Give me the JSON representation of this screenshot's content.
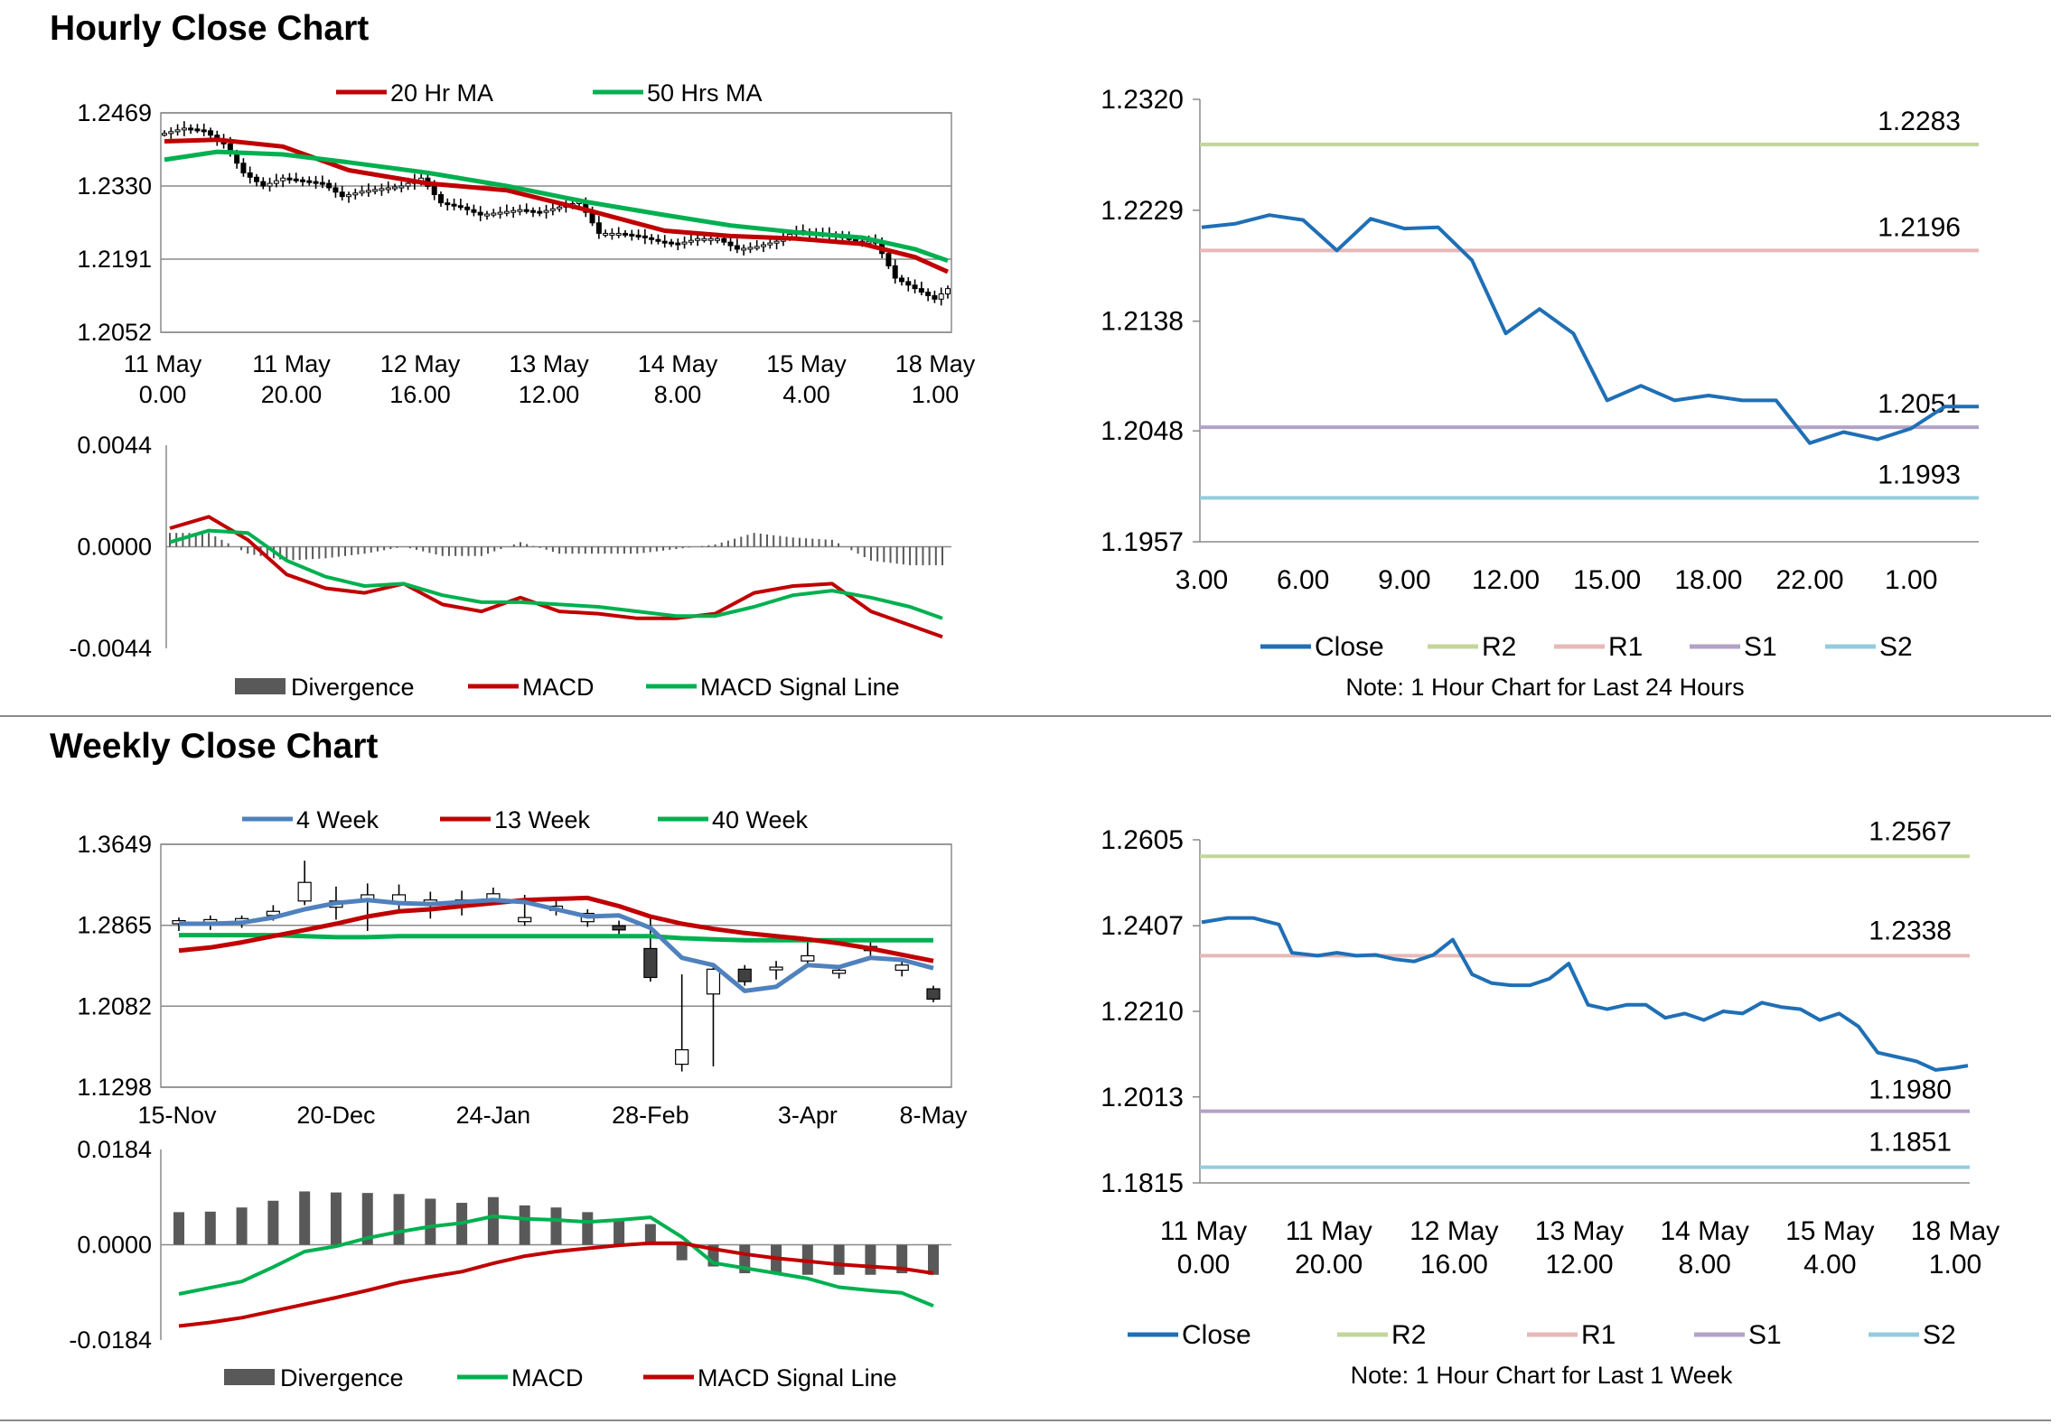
{
  "sections": {
    "hourly_title": "Hourly Close Chart",
    "weekly_title": "Weekly Close Chart"
  },
  "chart_data": [
    {
      "id": "hourly_price",
      "type": "candlestick",
      "x_ticks": [
        {
          "l1": "11 May",
          "l2": "0.00"
        },
        {
          "l1": "11 May",
          "l2": "20.00"
        },
        {
          "l1": "12 May",
          "l2": "16.00"
        },
        {
          "l1": "13 May",
          "l2": "12.00"
        },
        {
          "l1": "14 May",
          "l2": "8.00"
        },
        {
          "l1": "15 May",
          "l2": "4.00"
        },
        {
          "l1": "18 May",
          "l2": "1.00"
        }
      ],
      "y_ticks": [
        "1.2469",
        "1.2330",
        "1.2191",
        "1.2052"
      ],
      "ylim": [
        1.2052,
        1.2469
      ],
      "x_count": 120,
      "legend": [
        "20 Hr MA",
        "50 Hrs MA"
      ],
      "colors": {
        "ma20": "#c00000",
        "ma50": "#00b050",
        "candle": "#000000"
      },
      "series": [
        {
          "name": "20 Hr MA",
          "x": [
            0,
            8,
            18,
            28,
            40,
            52,
            64,
            76,
            86,
            96,
            106,
            114,
            119
          ],
          "y": [
            1.2415,
            1.2418,
            1.2405,
            1.236,
            1.2335,
            1.2322,
            1.2285,
            1.2245,
            1.2235,
            1.223,
            1.222,
            1.2195,
            1.2167
          ]
        },
        {
          "name": "50 Hrs MA",
          "x": [
            0,
            8,
            18,
            28,
            40,
            52,
            64,
            76,
            86,
            96,
            106,
            114,
            119
          ],
          "y": [
            1.238,
            1.2395,
            1.239,
            1.2375,
            1.2355,
            1.233,
            1.23,
            1.2275,
            1.2255,
            1.2242,
            1.2232,
            1.221,
            1.2188
          ]
        },
        {
          "name": "Close",
          "x": [
            0,
            3,
            6,
            9,
            12,
            15,
            18,
            21,
            24,
            27,
            30,
            33,
            36,
            39,
            42,
            45,
            48,
            51,
            54,
            57,
            60,
            63,
            66,
            69,
            72,
            75,
            78,
            81,
            84,
            87,
            90,
            93,
            96,
            99,
            102,
            105,
            108,
            111,
            114,
            117,
            119
          ],
          "y": [
            1.243,
            1.244,
            1.2435,
            1.241,
            1.2355,
            1.233,
            1.2345,
            1.234,
            1.2335,
            1.231,
            1.232,
            1.2325,
            1.233,
            1.2345,
            1.2298,
            1.229,
            1.2275,
            1.228,
            1.2285,
            1.228,
            1.229,
            1.23,
            1.224,
            1.224,
            1.2235,
            1.2225,
            1.222,
            1.223,
            1.223,
            1.221,
            1.2215,
            1.2225,
            1.2245,
            1.224,
            1.2235,
            1.2225,
            1.2225,
            1.2155,
            1.2135,
            1.2115,
            1.2135
          ]
        }
      ]
    },
    {
      "id": "hourly_macd",
      "type": "line_bar",
      "y_ticks": [
        "0.0044",
        "0.0000",
        "-0.0044"
      ],
      "ylim": [
        -0.0044,
        0.0044
      ],
      "x_count": 120,
      "legend": [
        "Divergence",
        "MACD",
        "MACD Signal Line"
      ],
      "colors": {
        "divergence": "#595959",
        "macd": "#c00000",
        "signal": "#00b050"
      },
      "series": [
        {
          "name": "MACD",
          "x": [
            0,
            6,
            12,
            18,
            24,
            30,
            36,
            42,
            48,
            54,
            60,
            66,
            72,
            78,
            84,
            90,
            96,
            102,
            108,
            114,
            119
          ],
          "y": [
            0.0008,
            0.0013,
            0.0003,
            -0.0012,
            -0.0018,
            -0.002,
            -0.0016,
            -0.0025,
            -0.0028,
            -0.0022,
            -0.0028,
            -0.0029,
            -0.0031,
            -0.0031,
            -0.0029,
            -0.002,
            -0.0017,
            -0.0016,
            -0.0028,
            -0.0034,
            -0.0039
          ]
        },
        {
          "name": "MACD Signal Line",
          "x": [
            0,
            6,
            12,
            18,
            24,
            30,
            36,
            42,
            48,
            54,
            60,
            66,
            72,
            78,
            84,
            90,
            96,
            102,
            108,
            114,
            119
          ],
          "y": [
            0.0002,
            0.0007,
            0.0006,
            -0.0006,
            -0.0013,
            -0.0017,
            -0.0016,
            -0.0021,
            -0.0024,
            -0.0024,
            -0.0025,
            -0.0026,
            -0.0028,
            -0.003,
            -0.003,
            -0.0026,
            -0.0021,
            -0.0019,
            -0.0022,
            -0.0026,
            -0.0031
          ]
        }
      ]
    },
    {
      "id": "hourly_sr",
      "type": "line",
      "x_ticks": [
        "3.00",
        "6.00",
        "9.00",
        "12.00",
        "15.00",
        "18.00",
        "22.00",
        "1.00"
      ],
      "y_ticks": [
        "1.2320",
        "1.2229",
        "1.2138",
        "1.2048",
        "1.1957"
      ],
      "ylim": [
        1.1957,
        1.232
      ],
      "levels": [
        {
          "name": "R2",
          "value": 1.2283,
          "label": "1.2283",
          "color": "#c3d69b"
        },
        {
          "name": "R1",
          "value": 1.2196,
          "label": "1.2196",
          "color": "#e6b9b8"
        },
        {
          "name": "S1",
          "value": 1.2051,
          "label": "1.2051",
          "color": "#b3a2c7"
        },
        {
          "name": "S2",
          "value": 1.1993,
          "label": "1.1993",
          "color": "#93cddd"
        }
      ],
      "close_color": "#1f6fb5",
      "close": [
        1.2215,
        1.2218,
        1.2225,
        1.2221,
        1.2196,
        1.2222,
        1.2214,
        1.2215,
        1.2188,
        1.2128,
        1.2148,
        1.2128,
        1.2073,
        1.2085,
        1.2073,
        1.2077,
        1.2073,
        1.2073,
        1.2038,
        1.2047,
        1.2041,
        1.205,
        1.2068,
        1.2068
      ],
      "legend": [
        "Close",
        "R2",
        "R1",
        "S1",
        "S2"
      ],
      "note": "Note: 1 Hour Chart for Last 24 Hours"
    },
    {
      "id": "weekly_price",
      "type": "candlestick",
      "x_ticks": [
        "15-Nov",
        "20-Dec",
        "24-Jan",
        "28-Feb",
        "3-Apr",
        "8-May"
      ],
      "y_ticks": [
        "1.3649",
        "1.2865",
        "1.2082",
        "1.1298"
      ],
      "ylim": [
        1.1298,
        1.3649
      ],
      "legend": [
        "4 Week",
        "13 Week",
        "40 Week"
      ],
      "colors": {
        "w4": "#4f81bd",
        "w13": "#c00000",
        "w40": "#00b050"
      },
      "candles": [
        {
          "o": 1.288,
          "c": 1.291,
          "h": 1.294,
          "l": 1.281
        },
        {
          "o": 1.287,
          "c": 1.292,
          "h": 1.296,
          "l": 1.282
        },
        {
          "o": 1.289,
          "c": 1.293,
          "h": 1.296,
          "l": 1.284
        },
        {
          "o": 1.296,
          "c": 1.3,
          "h": 1.306,
          "l": 1.291
        },
        {
          "o": 1.31,
          "c": 1.328,
          "h": 1.349,
          "l": 1.306
        },
        {
          "o": 1.304,
          "c": 1.31,
          "h": 1.324,
          "l": 1.292
        },
        {
          "o": 1.31,
          "c": 1.316,
          "h": 1.327,
          "l": 1.281
        },
        {
          "o": 1.309,
          "c": 1.316,
          "h": 1.326,
          "l": 1.302
        },
        {
          "o": 1.307,
          "c": 1.311,
          "h": 1.319,
          "l": 1.293
        },
        {
          "o": 1.307,
          "c": 1.311,
          "h": 1.32,
          "l": 1.296
        },
        {
          "o": 1.311,
          "c": 1.317,
          "h": 1.323,
          "l": 1.306
        },
        {
          "o": 1.29,
          "c": 1.294,
          "h": 1.316,
          "l": 1.286
        },
        {
          "o": 1.301,
          "c": 1.305,
          "h": 1.31,
          "l": 1.296
        },
        {
          "o": 1.29,
          "c": 1.298,
          "h": 1.302,
          "l": 1.285
        },
        {
          "o": 1.286,
          "c": 1.282,
          "h": 1.291,
          "l": 1.276
        },
        {
          "o": 1.264,
          "c": 1.236,
          "h": 1.295,
          "l": 1.232
        },
        {
          "o": 1.152,
          "c": 1.166,
          "h": 1.239,
          "l": 1.145
        },
        {
          "o": 1.22,
          "c": 1.244,
          "h": 1.249,
          "l": 1.15
        },
        {
          "o": 1.244,
          "c": 1.232,
          "h": 1.248,
          "l": 1.228
        },
        {
          "o": 1.246,
          "c": 1.246,
          "h": 1.252,
          "l": 1.234
        },
        {
          "o": 1.252,
          "c": 1.257,
          "h": 1.27,
          "l": 1.248
        },
        {
          "o": 1.24,
          "c": 1.243,
          "h": 1.248,
          "l": 1.235
        },
        {
          "o": 1.262,
          "c": 1.266,
          "h": 1.271,
          "l": 1.256
        },
        {
          "o": 1.243,
          "c": 1.248,
          "h": 1.254,
          "l": 1.237
        },
        {
          "o": 1.225,
          "c": 1.215,
          "h": 1.228,
          "l": 1.212
        }
      ],
      "series": [
        {
          "name": "4 Week",
          "y": [
            1.288,
            1.288,
            1.289,
            1.294,
            1.302,
            1.308,
            1.311,
            1.308,
            1.307,
            1.309,
            1.311,
            1.309,
            1.302,
            1.295,
            1.296,
            1.284,
            1.255,
            1.248,
            1.223,
            1.227,
            1.248,
            1.246,
            1.255,
            1.253,
            1.245
          ]
        },
        {
          "name": "13 Week",
          "y": [
            1.262,
            1.265,
            1.27,
            1.276,
            1.282,
            1.288,
            1.295,
            1.3,
            1.302,
            1.305,
            1.308,
            1.311,
            1.312,
            1.313,
            1.305,
            1.295,
            1.288,
            1.283,
            1.279,
            1.276,
            1.273,
            1.269,
            1.264,
            1.258,
            1.252
          ]
        },
        {
          "name": "40 Week",
          "y": [
            1.277,
            1.277,
            1.277,
            1.277,
            1.276,
            1.275,
            1.275,
            1.276,
            1.276,
            1.276,
            1.276,
            1.276,
            1.276,
            1.276,
            1.276,
            1.276,
            1.274,
            1.273,
            1.272,
            1.272,
            1.272,
            1.272,
            1.272,
            1.272,
            1.272
          ]
        }
      ]
    },
    {
      "id": "weekly_macd",
      "type": "line_bar",
      "y_ticks": [
        "0.0184",
        "0.0000",
        "-0.0184"
      ],
      "ylim": [
        -0.0184,
        0.0184
      ],
      "legend": [
        "Divergence",
        "MACD",
        "MACD Signal Line"
      ],
      "colors": {
        "divergence": "#595959",
        "macd": "#00b050",
        "signal": "#c00000"
      },
      "divergence": [
        0.0063,
        0.0064,
        0.0072,
        0.0085,
        0.0103,
        0.0101,
        0.01,
        0.0098,
        0.0089,
        0.0081,
        0.0092,
        0.0076,
        0.0072,
        0.0063,
        0.0047,
        0.004,
        -0.003,
        -0.0042,
        -0.0055,
        -0.0055,
        -0.0058,
        -0.0058,
        -0.0058,
        -0.0055,
        -0.0058
      ],
      "series": [
        {
          "name": "MACD",
          "y": [
            -0.0095,
            -0.0083,
            -0.0071,
            -0.0043,
            -0.0013,
            -0.0003,
            0.0013,
            0.0025,
            0.0035,
            0.0042,
            0.0055,
            0.005,
            0.0048,
            0.0044,
            0.0048,
            0.0053,
            0.0015,
            -0.0035,
            -0.0045,
            -0.0055,
            -0.0065,
            -0.0082,
            -0.0088,
            -0.0093,
            -0.0118
          ]
        },
        {
          "name": "MACD Signal Line",
          "y": [
            -0.0157,
            -0.015,
            -0.0141,
            -0.0128,
            -0.0115,
            -0.0102,
            -0.0088,
            -0.0073,
            -0.0062,
            -0.0052,
            -0.0036,
            -0.0022,
            -0.0013,
            -0.0007,
            -0.0001,
            0.0003,
            0.0003,
            -0.0008,
            -0.0018,
            -0.0026,
            -0.0032,
            -0.0038,
            -0.0042,
            -0.0046,
            -0.0055
          ]
        }
      ]
    },
    {
      "id": "weekly_sr",
      "type": "line",
      "x_ticks": [
        {
          "l1": "11 May",
          "l2": "0.00"
        },
        {
          "l1": "11 May",
          "l2": "20.00"
        },
        {
          "l1": "12 May",
          "l2": "16.00"
        },
        {
          "l1": "13 May",
          "l2": "12.00"
        },
        {
          "l1": "14 May",
          "l2": "8.00"
        },
        {
          "l1": "15 May",
          "l2": "4.00"
        },
        {
          "l1": "18 May",
          "l2": "1.00"
        }
      ],
      "y_ticks": [
        "1.2605",
        "1.2407",
        "1.2210",
        "1.2013",
        "1.1815"
      ],
      "ylim": [
        1.1815,
        1.2605
      ],
      "levels": [
        {
          "name": "R2",
          "value": 1.2567,
          "label": "1.2567",
          "color": "#c3d69b"
        },
        {
          "name": "R1",
          "value": 1.2338,
          "label": "1.2338",
          "color": "#e6b9b8"
        },
        {
          "name": "S1",
          "value": 1.198,
          "label": "1.1980",
          "color": "#b3a2c7"
        },
        {
          "name": "S2",
          "value": 1.1851,
          "label": "1.1851",
          "color": "#93cddd"
        }
      ],
      "close_color": "#1f6fb5",
      "close_x": [
        0,
        4,
        8,
        12,
        14,
        18,
        21,
        24,
        27,
        30,
        33,
        36,
        39,
        42,
        45,
        48,
        51,
        54,
        57,
        60,
        63,
        66,
        69,
        72,
        75,
        78,
        81,
        84,
        87,
        90,
        93,
        96,
        99,
        102,
        105,
        108,
        111,
        114,
        117,
        119
      ],
      "close": [
        1.2415,
        1.2425,
        1.2425,
        1.241,
        1.2345,
        1.2338,
        1.2345,
        1.2338,
        1.234,
        1.233,
        1.2325,
        1.234,
        1.2375,
        1.2295,
        1.2275,
        1.227,
        1.227,
        1.2285,
        1.232,
        1.2225,
        1.2215,
        1.2225,
        1.2225,
        1.2195,
        1.2205,
        1.219,
        1.221,
        1.2205,
        1.223,
        1.222,
        1.2215,
        1.219,
        1.2205,
        1.2175,
        1.2115,
        1.2105,
        1.2095,
        1.2075,
        1.208,
        1.2085
      ],
      "legend": [
        "Close",
        "R2",
        "R1",
        "S1",
        "S2"
      ],
      "note": "Note: 1 Hour Chart for Last 1 Week"
    }
  ]
}
